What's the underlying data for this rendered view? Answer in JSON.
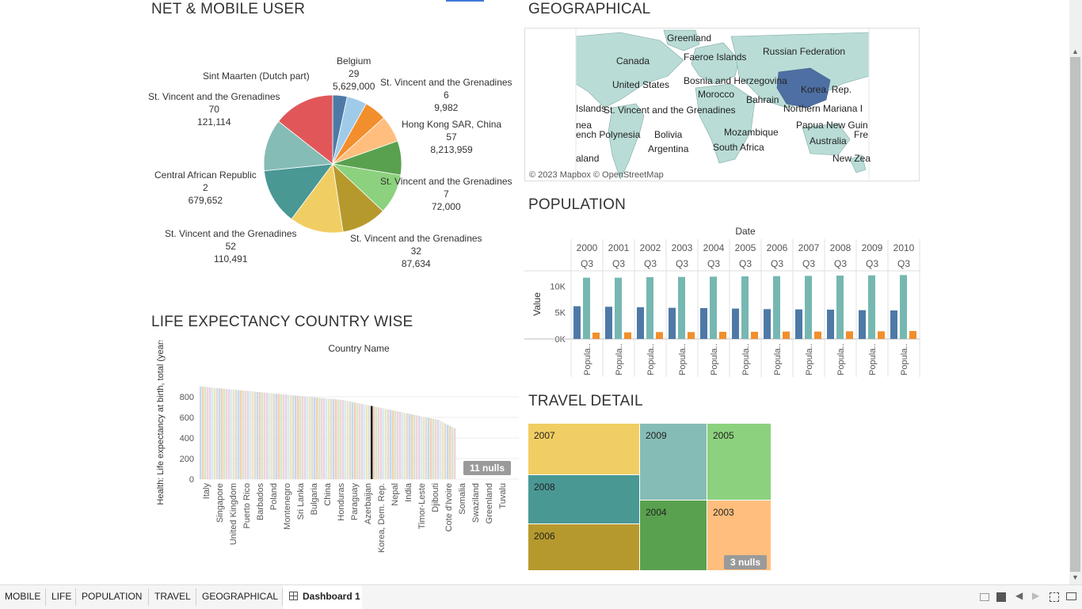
{
  "net_mobile": {
    "title": "NET & MOBILE USER",
    "labels": [
      {
        "name": "Belgium",
        "v1": "29",
        "v2": "5,629,000"
      },
      {
        "name": "Sint Maarten (Dutch part)"
      },
      {
        "name": "St. Vincent and the Grenadines",
        "v1": "6",
        "v2": "9,982"
      },
      {
        "name": "St. Vincent and the Grenadines",
        "v1": "70",
        "v2": "121,114"
      },
      {
        "name": "Hong Kong SAR, China",
        "v1": "57",
        "v2": "8,213,959"
      },
      {
        "name": "Central African Republic",
        "v1": "2",
        "v2": "679,652"
      },
      {
        "name": "St. Vincent and the Grenadines",
        "v1": "7",
        "v2": "72,000"
      },
      {
        "name": "St. Vincent and the Grenadines",
        "v1": "52",
        "v2": "110,491"
      },
      {
        "name": "St. Vincent and the Grenadines",
        "v1": "32",
        "v2": "87,634"
      }
    ],
    "slices": [
      {
        "pct": 3.4,
        "color": "#4e79a7"
      },
      {
        "pct": 4.7,
        "color": "#a0cbe8"
      },
      {
        "pct": 5.2,
        "color": "#f28e2b"
      },
      {
        "pct": 6.3,
        "color": "#ffbe7d"
      },
      {
        "pct": 8.0,
        "color": "#59a14f"
      },
      {
        "pct": 9.4,
        "color": "#8cd17d"
      },
      {
        "pct": 10.6,
        "color": "#b6992d"
      },
      {
        "pct": 12.6,
        "color": "#f1ce63"
      },
      {
        "pct": 13.2,
        "color": "#499894"
      },
      {
        "pct": 12.2,
        "color": "#86bcb6"
      },
      {
        "pct": 14.4,
        "color": "#e15759"
      }
    ]
  },
  "geo": {
    "title": "GEOGRAPHICAL",
    "labels": [
      "Greenland",
      "Faeroe Islands",
      "Canada",
      "Russian Federation",
      "United States",
      "Bosnia and Herzegovina",
      "Morocco",
      "Korea, Rep.",
      "Bahrain",
      "Islands",
      "St. Vincent and the Grenadines",
      "Northern Mariana I",
      "nea",
      "Papua New Guin",
      "ench Polynesia",
      "Bolivia",
      "Mozambique",
      "Fre",
      "Argentina",
      "South Africa",
      "Australia",
      "aland",
      "New Zea"
    ],
    "credit": "© 2023 Mapbox © OpenStreetMap"
  },
  "population": {
    "title": "POPULATION",
    "header": "Date",
    "years": [
      "2000",
      "2001",
      "2002",
      "2003",
      "2004",
      "2005",
      "2006",
      "2007",
      "2008",
      "2009",
      "2010"
    ],
    "quarter": "Q3",
    "ylabel": "Value",
    "yticks": [
      "10K",
      "5K",
      "0K"
    ],
    "col_label": "Popula..",
    "colors": [
      "#4e79a7",
      "#76b7b2",
      "#f28e2b"
    ]
  },
  "chart_data": {
    "type": "bar",
    "categories": [
      "2000",
      "2001",
      "2002",
      "2003",
      "2004",
      "2005",
      "2006",
      "2007",
      "2008",
      "2009",
      "2010"
    ],
    "ylabel": "Value",
    "ylim": [
      0,
      12000
    ],
    "series": [
      {
        "values": [
          6200,
          6100,
          6000,
          5900,
          5850,
          5750,
          5650,
          5600,
          5550,
          5450,
          5400
        ]
      },
      {
        "values": [
          11600,
          11600,
          11700,
          11750,
          11800,
          11850,
          11900,
          11950,
          12000,
          12050,
          12100
        ]
      },
      {
        "values": [
          1200,
          1250,
          1300,
          1300,
          1350,
          1350,
          1400,
          1400,
          1450,
          1450,
          1500
        ]
      }
    ]
  },
  "life": {
    "title": "LIFE EXPECTANCY COUNTRY WISE",
    "header": "Country Name",
    "ylabel": "Health: Life expectancy at birth, total (years)",
    "yticks": [
      "800",
      "600",
      "400",
      "200",
      "0"
    ],
    "countries": [
      "Italy",
      "Singapore",
      "United Kingdom",
      "Puerto Rico",
      "Barbados",
      "Poland",
      "Montenegro",
      "Sri Lanka",
      "Bulgaria",
      "China",
      "Honduras",
      "Paraguay",
      "Azerbaijan",
      "Korea, Dem. Rep.",
      "Nepal",
      "India",
      "Timor-Leste",
      "Djibouti",
      "Cote d'Ivoire",
      "Somalia",
      "Swaziland",
      "Greenland",
      "Tuvalu"
    ],
    "nulls": "11 nulls"
  },
  "travel": {
    "title": "TRAVEL DETAIL",
    "cells": [
      {
        "label": "2007",
        "color": "#f1ce63"
      },
      {
        "label": "2008",
        "color": "#499894"
      },
      {
        "label": "2006",
        "color": "#b6992d"
      },
      {
        "label": "2009",
        "color": "#86bcb6"
      },
      {
        "label": "2004",
        "color": "#59a14f"
      },
      {
        "label": "2005",
        "color": "#8cd17d"
      },
      {
        "label": "2003",
        "color": "#ffbe7d"
      }
    ],
    "nulls": "3 nulls"
  },
  "tabs": [
    "MOBILE",
    "LIFE",
    "POPULATION",
    "TRAVEL",
    "GEOGRAPHICAL",
    "Dashboard 1"
  ]
}
